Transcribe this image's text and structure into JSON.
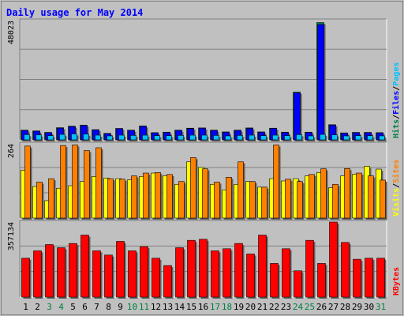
{
  "title": "Daily usage for May 2014",
  "colors": {
    "background": "#c0c0c0",
    "frame_dark": "#808080",
    "title": "#0000ff",
    "hits": "#008040",
    "files": "#0000ff",
    "pages": "#00c0ff",
    "visits": "#ffff00",
    "sites": "#ff8000",
    "kbytes": "#ff0000",
    "weekend_label": "#008040",
    "weekday_label": "#000000"
  },
  "chart_data": [
    {
      "type": "bar",
      "panel": "hits-files-pages",
      "ymax_label": "48023",
      "legend": [
        {
          "text": "Hits",
          "color": "#008040"
        },
        {
          "text": "/",
          "color": "#000000"
        },
        {
          "text": "Files",
          "color": "#0000ff"
        },
        {
          "text": "/",
          "color": "#000000"
        },
        {
          "text": "Pages",
          "color": "#00c0ff"
        }
      ],
      "ylim": [
        0,
        48023
      ],
      "x": [
        1,
        2,
        3,
        4,
        5,
        6,
        7,
        8,
        9,
        10,
        11,
        12,
        13,
        14,
        15,
        16,
        17,
        18,
        19,
        20,
        21,
        22,
        23,
        24,
        25,
        26,
        27,
        28,
        29,
        30,
        31
      ],
      "series": [
        {
          "name": "Hits",
          "values": [
            3900,
            3600,
            3000,
            4900,
            5500,
            5900,
            4100,
            2600,
            4600,
            3900,
            5600,
            2900,
            3100,
            3900,
            4700,
            4800,
            3900,
            3200,
            3900,
            4800,
            3200,
            4700,
            3100,
            19200,
            3100,
            47200,
            6100,
            2800,
            3000,
            3000,
            2900
          ]
        },
        {
          "name": "Files",
          "values": [
            3800,
            3500,
            2900,
            4700,
            5300,
            5800,
            4000,
            2500,
            4500,
            3800,
            5400,
            2800,
            3000,
            3800,
            4500,
            4700,
            3800,
            3100,
            3800,
            4600,
            3100,
            4600,
            3000,
            18900,
            3000,
            46400,
            5900,
            2700,
            2900,
            2900,
            2800
          ]
        },
        {
          "name": "Pages",
          "values": [
            2100,
            2000,
            1700,
            2200,
            2400,
            2300,
            1900,
            1600,
            1900,
            1800,
            1900,
            1700,
            1700,
            1800,
            1900,
            1900,
            1800,
            1600,
            1800,
            1900,
            1700,
            1900,
            1700,
            2100,
            1600,
            2200,
            2000,
            1600,
            1700,
            1700,
            1600
          ]
        }
      ]
    },
    {
      "type": "bar",
      "panel": "visits-sites",
      "ymax_label": "264",
      "legend": [
        {
          "text": "Visits",
          "color": "#ffff00"
        },
        {
          "text": "/",
          "color": "#000000"
        },
        {
          "text": "Sites",
          "color": "#ff8000"
        }
      ],
      "ylim": [
        0,
        264
      ],
      "x": [
        1,
        2,
        3,
        4,
        5,
        6,
        7,
        8,
        9,
        10,
        11,
        12,
        13,
        14,
        15,
        16,
        17,
        18,
        19,
        20,
        21,
        22,
        23,
        24,
        25,
        26,
        27,
        28,
        29,
        30,
        31
      ],
      "series": [
        {
          "name": "Visits",
          "values": [
            170,
            112,
            62,
            106,
            115,
            130,
            148,
            142,
            140,
            136,
            148,
            160,
            150,
            120,
            200,
            180,
            120,
            100,
            120,
            130,
            110,
            140,
            132,
            140,
            150,
            162,
            108,
            150,
            156,
            184,
            174
          ]
        },
        {
          "name": "Sites",
          "values": [
            256,
            128,
            140,
            258,
            260,
            240,
            250,
            140,
            138,
            150,
            160,
            162,
            155,
            130,
            215,
            175,
            128,
            145,
            200,
            130,
            110,
            260,
            138,
            130,
            155,
            175,
            120,
            176,
            160,
            150,
            135
          ]
        }
      ]
    },
    {
      "type": "bar",
      "panel": "kbytes",
      "ymax_label": "357134",
      "legend": [
        {
          "text": "KBytes",
          "color": "#ff0000"
        }
      ],
      "ylim": [
        0,
        357134
      ],
      "x": [
        1,
        2,
        3,
        4,
        5,
        6,
        7,
        8,
        9,
        10,
        11,
        12,
        13,
        14,
        15,
        16,
        17,
        18,
        19,
        20,
        21,
        22,
        23,
        24,
        25,
        26,
        27,
        28,
        29,
        30,
        31
      ],
      "series": [
        {
          "name": "KBytes",
          "values": [
            185000,
            220000,
            250000,
            235000,
            255000,
            295000,
            220000,
            200000,
            265000,
            220000,
            240000,
            185000,
            150000,
            235000,
            270000,
            275000,
            220000,
            230000,
            255000,
            205000,
            295000,
            160000,
            230000,
            125000,
            270000,
            160000,
            357134,
            260000,
            180000,
            185000,
            185000
          ]
        }
      ]
    }
  ],
  "day_labels": [
    {
      "text": "1",
      "weekend": false
    },
    {
      "text": "2",
      "weekend": false
    },
    {
      "text": "3",
      "weekend": true
    },
    {
      "text": "4",
      "weekend": true
    },
    {
      "text": "5",
      "weekend": false
    },
    {
      "text": "6",
      "weekend": false
    },
    {
      "text": "7",
      "weekend": false
    },
    {
      "text": "8",
      "weekend": false
    },
    {
      "text": "9",
      "weekend": false
    },
    {
      "text": "10",
      "weekend": true
    },
    {
      "text": "11",
      "weekend": true
    },
    {
      "text": "12",
      "weekend": false
    },
    {
      "text": "13",
      "weekend": false
    },
    {
      "text": "14",
      "weekend": false
    },
    {
      "text": "15",
      "weekend": false
    },
    {
      "text": "16",
      "weekend": false
    },
    {
      "text": "17",
      "weekend": true
    },
    {
      "text": "18",
      "weekend": true
    },
    {
      "text": "19",
      "weekend": false
    },
    {
      "text": "20",
      "weekend": false
    },
    {
      "text": "21",
      "weekend": false
    },
    {
      "text": "22",
      "weekend": false
    },
    {
      "text": "23",
      "weekend": false
    },
    {
      "text": "24",
      "weekend": true
    },
    {
      "text": "25",
      "weekend": true
    },
    {
      "text": "26",
      "weekend": false
    },
    {
      "text": "27",
      "weekend": false
    },
    {
      "text": "28",
      "weekend": false
    },
    {
      "text": "29",
      "weekend": false
    },
    {
      "text": "30",
      "weekend": false
    },
    {
      "text": "31",
      "weekend": true
    }
  ]
}
